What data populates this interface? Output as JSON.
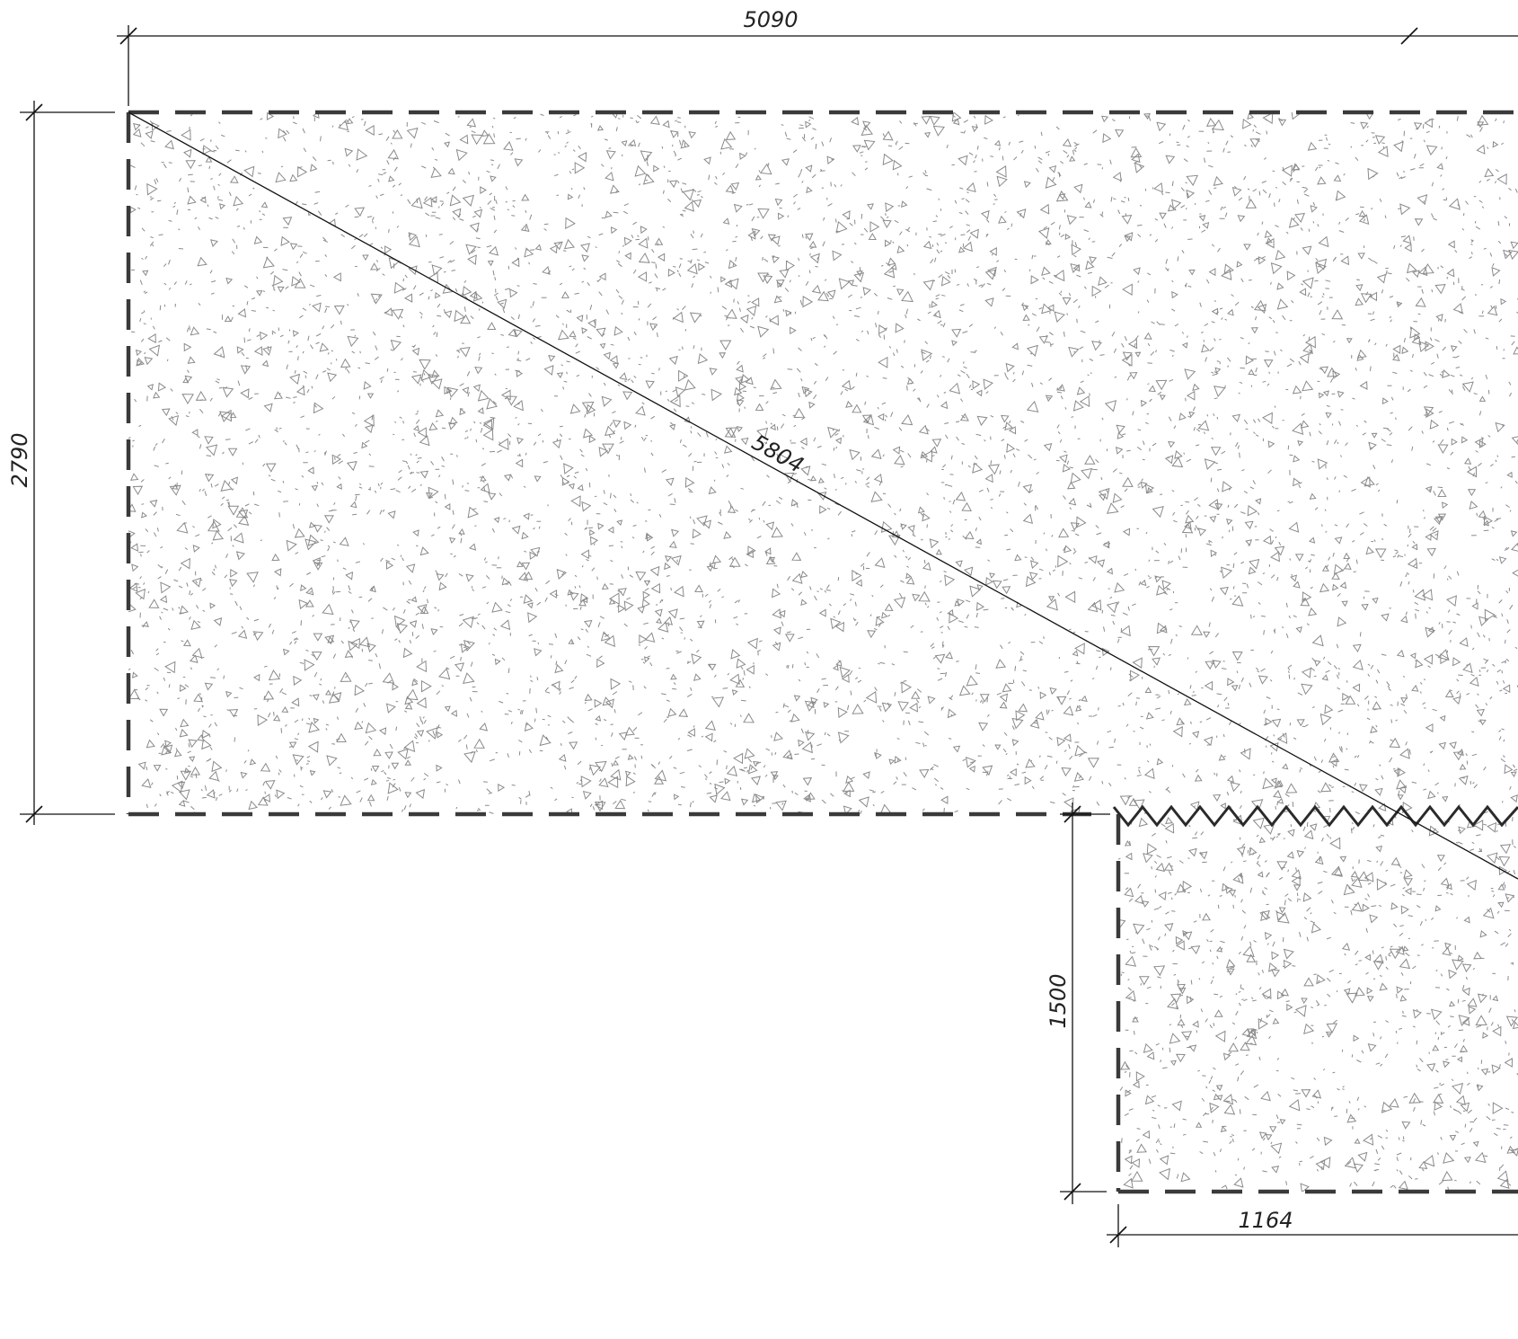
{
  "drawing": {
    "dimensions": {
      "top_width": "5090",
      "left_height": "2790",
      "diagonal": "5804",
      "lower_height": "1500",
      "lower_width": "1164"
    },
    "colors": {
      "boundary": "#3a3a3a",
      "dimension": "#111111",
      "hatch": "#8a8a8a"
    }
  }
}
